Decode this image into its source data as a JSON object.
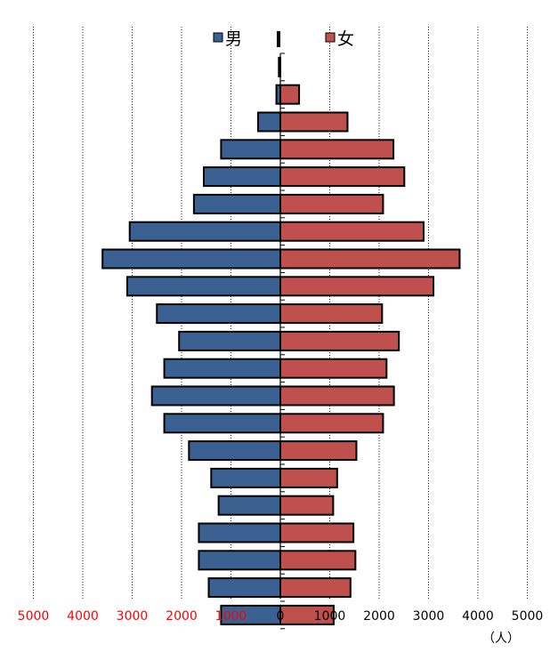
{
  "chart_data": {
    "type": "bar",
    "orientation": "horizontal-pyramid",
    "series": [
      {
        "name": "男",
        "side": "left",
        "color": "#3A6192",
        "values": [
          1200,
          1450,
          1650,
          1650,
          1250,
          1400,
          1850,
          2350,
          2600,
          2350,
          2050,
          2500,
          3100,
          3600,
          3050,
          1750,
          1550,
          1200,
          450,
          80,
          30
        ]
      },
      {
        "name": "女",
        "side": "right",
        "color": "#C0504D",
        "values": [
          1080,
          1420,
          1520,
          1480,
          1070,
          1150,
          1540,
          2080,
          2300,
          2150,
          2400,
          2060,
          3100,
          3630,
          2900,
          2080,
          2510,
          2290,
          1360,
          380,
          0
        ]
      }
    ],
    "xlim": [
      -5000,
      5000
    ],
    "tick_values": [
      -5000,
      -4000,
      -3000,
      -2000,
      -1000,
      0,
      1000,
      2000,
      3000,
      4000,
      5000
    ],
    "tick_labels": [
      "5000",
      "4000",
      "3000",
      "2000",
      "1000",
      "0",
      "1000",
      "2000",
      "3000",
      "4000",
      "5000"
    ],
    "left_tick_color": "#FF0000",
    "right_tick_color": "#000000",
    "unit_label": "（人）",
    "grid": "vertical-dotted",
    "legend_position": "top-center",
    "bar_outline_color": "#000000"
  }
}
